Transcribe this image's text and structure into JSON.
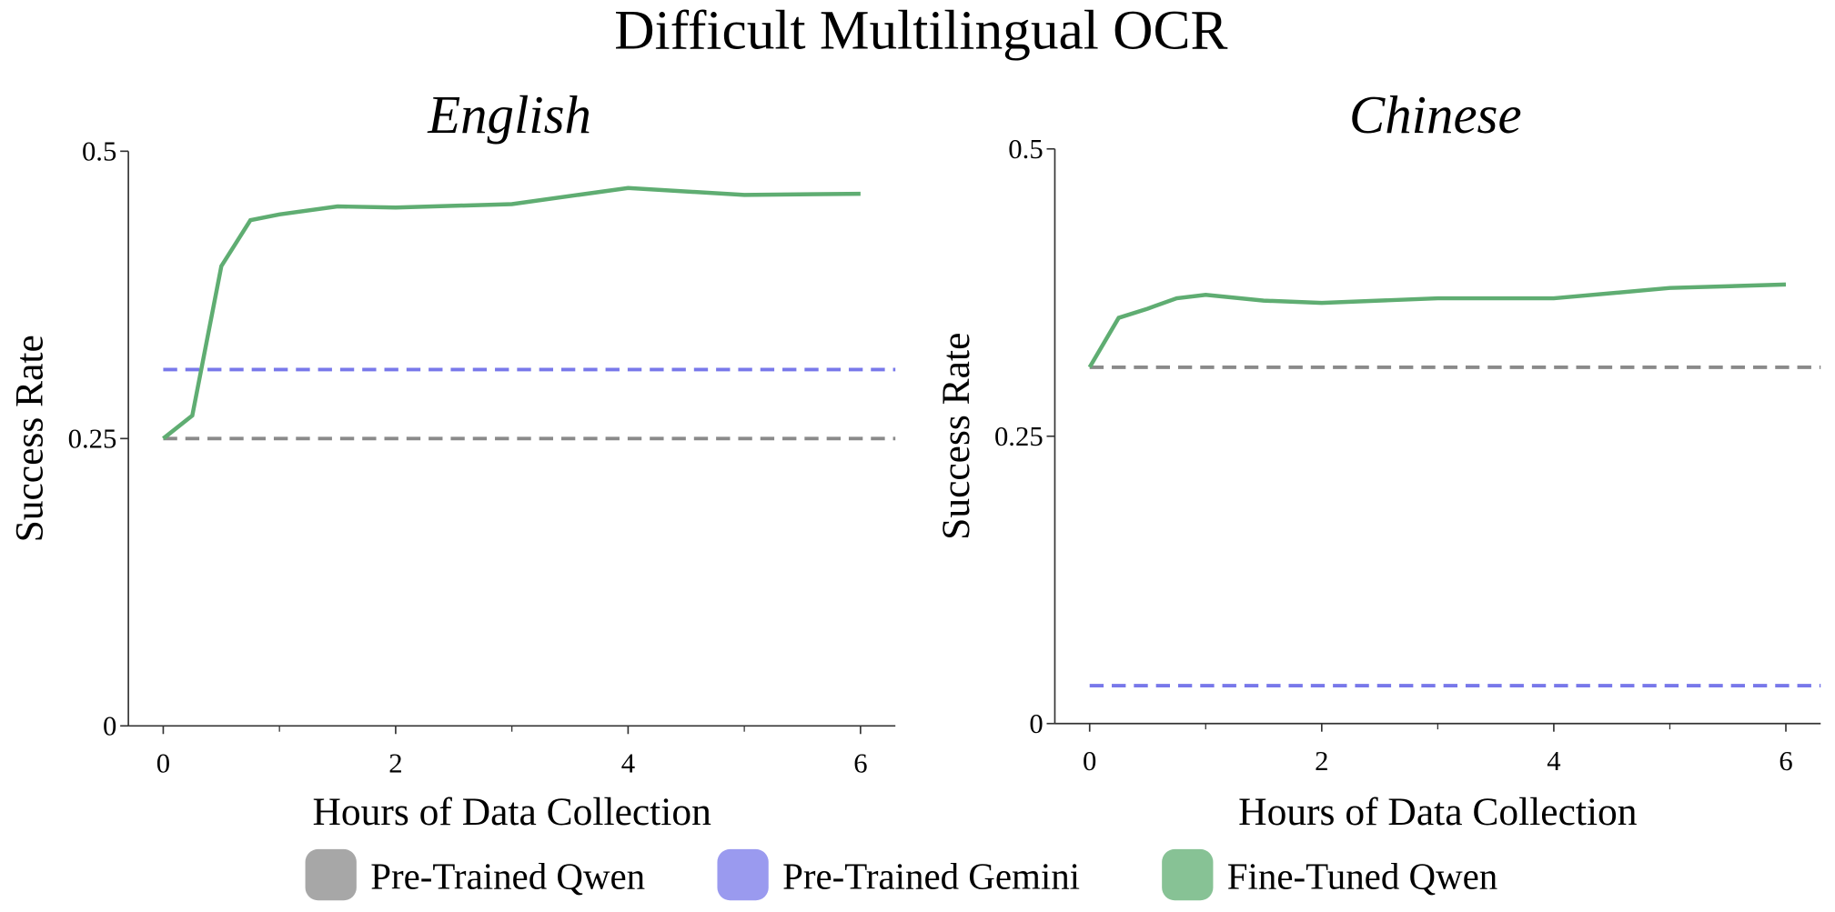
{
  "title": "Difficult Multilingual OCR",
  "chart_data": [
    {
      "type": "line",
      "title": "English",
      "x_label": "Hours of Data Collection",
      "y_label": "Success Rate",
      "x": [
        0,
        0.25,
        0.5,
        0.75,
        1,
        1.5,
        2,
        3,
        4,
        5,
        6
      ],
      "xlim": [
        -0.3,
        6.3
      ],
      "xticks": [
        0,
        2,
        4,
        6
      ],
      "xminorticks": [
        1,
        3,
        5
      ],
      "ylim": [
        0,
        0.5
      ],
      "yticks": [
        0,
        0.25,
        0.5
      ],
      "series": [
        {
          "name": "Pre-Trained Qwen",
          "color": "#8a8a8a",
          "dashed": true,
          "value": 0.25
        },
        {
          "name": "Pre-Trained Gemini",
          "color": "#7878ea",
          "dashed": true,
          "value": 0.31
        },
        {
          "name": "Fine-Tuned Qwen",
          "color": "#5fad72",
          "dashed": false,
          "values": [
            0.25,
            0.27,
            0.4,
            0.44,
            0.445,
            0.452,
            0.451,
            0.454,
            0.468,
            0.462,
            0.463
          ]
        }
      ]
    },
    {
      "type": "line",
      "title": "Chinese",
      "x_label": "Hours of Data Collection",
      "y_label": "Success Rate",
      "x": [
        0,
        0.25,
        0.5,
        0.75,
        1,
        1.5,
        2,
        3,
        4,
        5,
        6
      ],
      "xlim": [
        -0.3,
        6.3
      ],
      "xticks": [
        0,
        2,
        4,
        6
      ],
      "xminorticks": [
        1,
        3,
        5
      ],
      "ylim": [
        0,
        0.5
      ],
      "yticks": [
        0,
        0.25,
        0.5
      ],
      "series": [
        {
          "name": "Pre-Trained Qwen",
          "color": "#8a8a8a",
          "dashed": true,
          "value": 0.31
        },
        {
          "name": "Pre-Trained Gemini",
          "color": "#7878ea",
          "dashed": true,
          "value": 0.033
        },
        {
          "name": "Fine-Tuned Qwen",
          "color": "#5fad72",
          "dashed": false,
          "values": [
            0.31,
            0.353,
            0.361,
            0.37,
            0.373,
            0.368,
            0.366,
            0.37,
            0.37,
            0.379,
            0.382
          ]
        }
      ]
    }
  ]
}
